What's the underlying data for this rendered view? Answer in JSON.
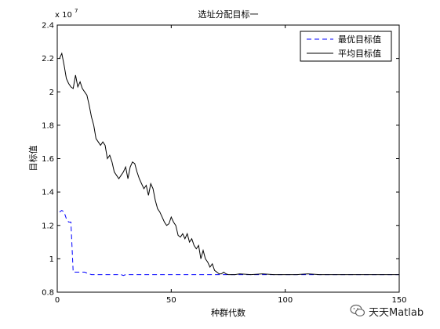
{
  "chart_data": {
    "type": "line",
    "title": "选址分配目标一",
    "xlabel": "种群代数",
    "ylabel": "目标值",
    "y_exponent_label": "x 10",
    "y_exponent_power": "7",
    "xlim": [
      0,
      150
    ],
    "ylim": [
      0.8,
      2.4
    ],
    "x_ticks": [
      "0",
      "50",
      "100",
      "150"
    ],
    "y_ticks": [
      "0.8",
      "1",
      "1.2",
      "1.4",
      "1.6",
      "1.8",
      "2",
      "2.2",
      "2.4"
    ],
    "legend_position": "top-right",
    "grid": false,
    "series": [
      {
        "name": "最优目标值",
        "color": "#0000ff",
        "style": "dashed",
        "x": [
          1,
          2,
          3,
          4,
          5,
          6,
          7,
          8,
          9,
          10,
          11,
          12,
          13,
          14,
          15,
          16,
          20,
          25,
          28,
          29,
          30,
          35,
          40,
          50,
          60,
          70,
          80,
          85,
          90,
          100,
          110,
          120,
          130,
          140,
          150
        ],
        "y": [
          1.28,
          1.29,
          1.28,
          1.24,
          1.22,
          1.22,
          0.92,
          0.92,
          0.92,
          0.92,
          0.92,
          0.92,
          0.915,
          0.91,
          0.905,
          0.905,
          0.905,
          0.905,
          0.905,
          0.9,
          0.905,
          0.905,
          0.905,
          0.905,
          0.905,
          0.905,
          0.905,
          0.905,
          0.905,
          0.905,
          0.905,
          0.905,
          0.905,
          0.905,
          0.905
        ]
      },
      {
        "name": "平均目标值",
        "color": "#000000",
        "style": "solid",
        "x": [
          1,
          2,
          3,
          4,
          5,
          6,
          7,
          8,
          9,
          10,
          11,
          12,
          13,
          14,
          15,
          16,
          17,
          18,
          19,
          20,
          21,
          22,
          23,
          24,
          25,
          26,
          27,
          28,
          29,
          30,
          31,
          32,
          33,
          34,
          35,
          36,
          37,
          38,
          39,
          40,
          41,
          42,
          43,
          44,
          45,
          46,
          47,
          48,
          49,
          50,
          51,
          52,
          53,
          54,
          55,
          56,
          57,
          58,
          59,
          60,
          61,
          62,
          63,
          64,
          65,
          66,
          67,
          68,
          69,
          70,
          71,
          72,
          73,
          74,
          75,
          76,
          78,
          80,
          85,
          90,
          95,
          100,
          105,
          110,
          115,
          120,
          130,
          140,
          150
        ],
        "y": [
          2.2,
          2.23,
          2.16,
          2.08,
          2.05,
          2.03,
          2.02,
          2.1,
          2.03,
          2.06,
          2.02,
          2.0,
          1.98,
          1.92,
          1.85,
          1.8,
          1.72,
          1.7,
          1.68,
          1.7,
          1.68,
          1.6,
          1.62,
          1.58,
          1.52,
          1.5,
          1.48,
          1.5,
          1.52,
          1.55,
          1.48,
          1.55,
          1.58,
          1.57,
          1.52,
          1.48,
          1.45,
          1.42,
          1.44,
          1.38,
          1.45,
          1.42,
          1.35,
          1.3,
          1.28,
          1.25,
          1.22,
          1.2,
          1.21,
          1.25,
          1.22,
          1.2,
          1.14,
          1.13,
          1.15,
          1.12,
          1.15,
          1.1,
          1.12,
          1.08,
          1.06,
          1.08,
          1.0,
          1.05,
          1.0,
          0.98,
          0.95,
          0.97,
          0.93,
          0.92,
          0.91,
          0.91,
          0.92,
          0.91,
          0.905,
          0.905,
          0.905,
          0.91,
          0.905,
          0.91,
          0.905,
          0.905,
          0.905,
          0.91,
          0.905,
          0.905,
          0.905,
          0.905,
          0.905
        ]
      }
    ]
  },
  "watermark": {
    "text": "天天Matlab",
    "icon": "wechat-icon"
  }
}
